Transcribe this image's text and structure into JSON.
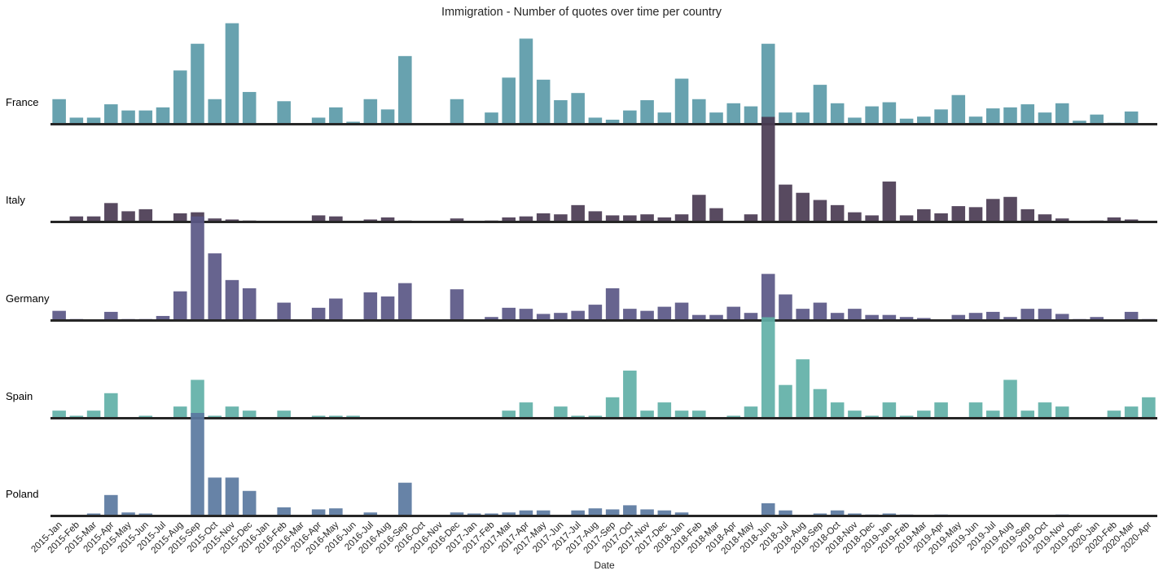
{
  "chart_data": {
    "type": "bar",
    "title": "Immigration - Number of quotes over time per country",
    "xlabel": "Date",
    "ylabel": "",
    "grid": false,
    "legend": "none",
    "categories": [
      "2015-Jan",
      "2015-Feb",
      "2015-Mar",
      "2015-Apr",
      "2015-May",
      "2015-Jun",
      "2015-Jul",
      "2015-Aug",
      "2015-Sep",
      "2015-Oct",
      "2015-Nov",
      "2015-Dec",
      "2016-Jan",
      "2016-Feb",
      "2016-Mar",
      "2016-Apr",
      "2016-May",
      "2016-Jun",
      "2016-Jul",
      "2016-Aug",
      "2016-Sep",
      "2016-Oct",
      "2016-Nov",
      "2016-Dec",
      "2017-Jan",
      "2017-Feb",
      "2017-Mar",
      "2017-Apr",
      "2017-May",
      "2017-Jun",
      "2017-Jul",
      "2017-Aug",
      "2017-Sep",
      "2017-Oct",
      "2017-Nov",
      "2017-Dec",
      "2018-Jan",
      "2018-Feb",
      "2018-Mar",
      "2018-Apr",
      "2018-May",
      "2018-Jun",
      "2018-Jul",
      "2018-Aug",
      "2018-Sep",
      "2018-Oct",
      "2018-Nov",
      "2018-Dec",
      "2019-Jan",
      "2019-Feb",
      "2019-Mar",
      "2019-Apr",
      "2019-May",
      "2019-Jun",
      "2019-Jul",
      "2019-Aug",
      "2019-Sep",
      "2019-Oct",
      "2019-Nov",
      "2019-Dec",
      "2020-Jan",
      "2020-Feb",
      "2020-Mar",
      "2020-Apr"
    ],
    "ylim": [
      0,
      100
    ],
    "series": [
      {
        "name": "France",
        "color": "#5b9aa8",
        "values": [
          24,
          6,
          6,
          19,
          13,
          13,
          16,
          52,
          78,
          24,
          98,
          31,
          0,
          22,
          0,
          6,
          16,
          2,
          24,
          14,
          66,
          0,
          0,
          24,
          0,
          11,
          45,
          83,
          43,
          23,
          30,
          6,
          4,
          13,
          23,
          11,
          44,
          24,
          11,
          20,
          17,
          78,
          11,
          11,
          38,
          20,
          6,
          17,
          21,
          5,
          7,
          14,
          28,
          7,
          15,
          16,
          19,
          11,
          20,
          3,
          9,
          1,
          12,
          0
        ]
      },
      {
        "name": "Italy",
        "color": "#4a3b52",
        "values": [
          0,
          5,
          5,
          18,
          10,
          12,
          0,
          8,
          9,
          3,
          2,
          1,
          0,
          0,
          0,
          6,
          5,
          0,
          2,
          4,
          1,
          0,
          0,
          3,
          0,
          1,
          4,
          5,
          8,
          7,
          16,
          10,
          6,
          6,
          7,
          4,
          7,
          26,
          13,
          0,
          7,
          102,
          36,
          28,
          21,
          16,
          9,
          6,
          39,
          6,
          12,
          8,
          15,
          14,
          22,
          24,
          12,
          7,
          3,
          0,
          1,
          4,
          2,
          0
        ]
      },
      {
        "name": "Germany",
        "color": "#5a5785",
        "values": [
          9,
          1,
          0,
          8,
          1,
          1,
          4,
          28,
          101,
          65,
          39,
          31,
          0,
          17,
          0,
          12,
          21,
          0,
          27,
          23,
          36,
          0,
          0,
          30,
          0,
          3,
          12,
          11,
          6,
          7,
          9,
          15,
          31,
          11,
          9,
          13,
          17,
          5,
          5,
          13,
          7,
          45,
          25,
          11,
          17,
          7,
          11,
          5,
          5,
          3,
          2,
          0,
          5,
          7,
          8,
          3,
          11,
          11,
          6,
          1,
          3,
          0,
          8,
          1
        ]
      },
      {
        "name": "Spain",
        "color": "#61b0a7",
        "values": [
          7,
          2,
          7,
          24,
          0,
          2,
          0,
          11,
          37,
          2,
          11,
          7,
          0,
          7,
          0,
          2,
          2,
          2,
          0,
          0,
          0,
          0,
          0,
          0,
          0,
          0,
          7,
          15,
          0,
          11,
          2,
          2,
          20,
          46,
          7,
          15,
          7,
          7,
          0,
          2,
          11,
          98,
          32,
          57,
          28,
          15,
          7,
          2,
          15,
          2,
          7,
          15,
          0,
          15,
          7,
          37,
          7,
          15,
          11,
          0,
          0,
          7,
          11,
          20
        ]
      },
      {
        "name": "Poland",
        "color": "#5a78a0",
        "values": [
          0,
          0,
          2,
          20,
          3,
          2,
          0,
          0,
          100,
          37,
          37,
          24,
          0,
          8,
          0,
          6,
          7,
          0,
          3,
          0,
          32,
          0,
          0,
          3,
          2,
          2,
          3,
          5,
          5,
          0,
          5,
          7,
          6,
          10,
          6,
          5,
          3,
          0,
          0,
          0,
          0,
          12,
          5,
          0,
          2,
          5,
          2,
          1,
          2,
          1,
          0,
          1,
          0,
          0,
          0,
          0,
          0,
          0,
          1,
          0,
          0,
          0,
          0,
          0
        ]
      }
    ]
  }
}
